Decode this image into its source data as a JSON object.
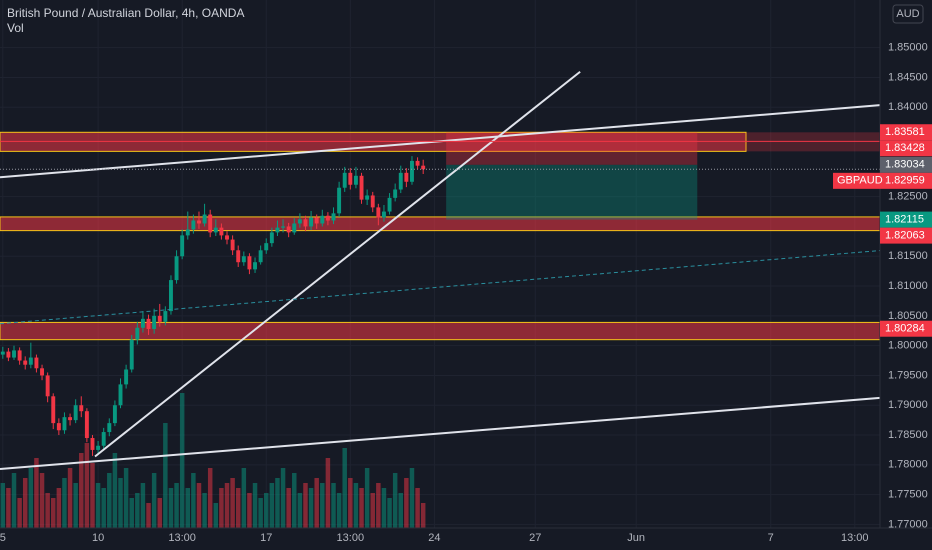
{
  "chart_data": {
    "type": "candlestick",
    "title": "British Pound / Australian Dollar, 4h, OANDA",
    "volume_label": "Vol",
    "currency": "AUD",
    "up_color": "#089981",
    "down_color": "#f23645",
    "grid": true,
    "xlim": [
      -0.5,
      156.5
    ],
    "ylim": [
      1.7694,
      1.858
    ],
    "xticks": [
      {
        "value": 0,
        "label": "5"
      },
      {
        "value": 17,
        "label": "10"
      },
      {
        "value": 32,
        "label": "13:00"
      },
      {
        "value": 47,
        "label": "17"
      },
      {
        "value": 62,
        "label": "13:00"
      },
      {
        "value": 77,
        "label": "24"
      },
      {
        "value": 95,
        "label": "27"
      },
      {
        "value": 113,
        "label": "Jun"
      },
      {
        "value": 137,
        "label": "7"
      },
      {
        "value": 152,
        "label": "13:00"
      }
    ],
    "yticks": [
      {
        "value": 1.85,
        "label": "1.85000"
      },
      {
        "value": 1.845,
        "label": "1.84500"
      },
      {
        "value": 1.84,
        "label": "1.84000"
      },
      {
        "value": 1.825,
        "label": "1.82500"
      },
      {
        "value": 1.815,
        "label": "1.81500"
      },
      {
        "value": 1.81,
        "label": "1.81000"
      },
      {
        "value": 1.805,
        "label": "1.80500"
      },
      {
        "value": 1.8,
        "label": "1.80000"
      },
      {
        "value": 1.795,
        "label": "1.79500"
      },
      {
        "value": 1.79,
        "label": "1.79000"
      },
      {
        "value": 1.785,
        "label": "1.78500"
      },
      {
        "value": 1.78,
        "label": "1.78000"
      },
      {
        "value": 1.775,
        "label": "1.77500"
      },
      {
        "value": 1.77,
        "label": "1.77000"
      }
    ],
    "open": [
      1.7985,
      1.799,
      1.798,
      1.7992,
      1.7975,
      1.7968,
      1.798,
      1.7962,
      1.795,
      1.7915,
      1.787,
      1.7858,
      1.788,
      1.7875,
      1.79,
      1.789,
      1.7845,
      1.7825,
      1.7832,
      1.7855,
      1.787,
      1.79,
      1.7935,
      1.796,
      1.801,
      1.803,
      1.8045,
      1.8028,
      1.805,
      1.804,
      1.8058,
      1.811,
      1.815,
      1.8185,
      1.8195,
      1.821,
      1.8205,
      1.822,
      1.819,
      1.8198,
      1.8185,
      1.8178,
      1.816,
      1.814,
      1.815,
      1.8128,
      1.814,
      1.816,
      1.8172,
      1.819,
      1.8198,
      1.82,
      1.819,
      1.8205,
      1.8212,
      1.82,
      1.8215,
      1.8205,
      1.8218,
      1.821,
      1.8222,
      1.8265,
      1.829,
      1.827,
      1.8285,
      1.8245,
      1.8252,
      1.8232,
      1.8215,
      1.8225,
      1.8248,
      1.8262,
      1.829,
      1.8275,
      1.831,
      1.8302
    ],
    "high": [
      1.7998,
      1.7996,
      1.8,
      1.7997,
      1.7982,
      1.8005,
      1.7985,
      1.7968,
      1.7955,
      1.792,
      1.7878,
      1.7888,
      1.7886,
      1.791,
      1.7915,
      1.7895,
      1.785,
      1.784,
      1.7862,
      1.7878,
      1.7908,
      1.7945,
      1.7968,
      1.8018,
      1.804,
      1.8058,
      1.8052,
      1.8062,
      1.807,
      1.8066,
      1.8118,
      1.816,
      1.8195,
      1.8225,
      1.822,
      1.8225,
      1.8238,
      1.8228,
      1.8212,
      1.8205,
      1.8192,
      1.8185,
      1.8168,
      1.8158,
      1.8155,
      1.8148,
      1.8168,
      1.818,
      1.8198,
      1.821,
      1.8212,
      1.8206,
      1.8214,
      1.8222,
      1.8218,
      1.8226,
      1.822,
      1.8228,
      1.8224,
      1.8232,
      1.8275,
      1.83,
      1.8298,
      1.83,
      1.829,
      1.8262,
      1.8258,
      1.8238,
      1.8236,
      1.8256,
      1.8272,
      1.8302,
      1.8298,
      1.8318,
      1.8316,
      1.8312
    ],
    "low": [
      1.7978,
      1.7974,
      1.7976,
      1.7968,
      1.796,
      1.7962,
      1.7955,
      1.7942,
      1.7905,
      1.786,
      1.785,
      1.7852,
      1.7866,
      1.787,
      1.788,
      1.7838,
      1.7815,
      1.7818,
      1.7826,
      1.7848,
      1.7865,
      1.7895,
      1.7928,
      1.7955,
      1.8002,
      1.8022,
      1.8018,
      1.802,
      1.8032,
      1.8034,
      1.8052,
      1.8104,
      1.8145,
      1.8178,
      1.8188,
      1.8196,
      1.82,
      1.8182,
      1.8184,
      1.8178,
      1.817,
      1.8152,
      1.8132,
      1.8134,
      1.812,
      1.8122,
      1.8136,
      1.8154,
      1.8166,
      1.8184,
      1.819,
      1.8182,
      1.8186,
      1.8198,
      1.8192,
      1.8194,
      1.8196,
      1.82,
      1.8202,
      1.8204,
      1.8216,
      1.8258,
      1.8262,
      1.8264,
      1.8238,
      1.8236,
      1.8224,
      1.8202,
      1.8208,
      1.822,
      1.8242,
      1.8256,
      1.8266,
      1.827,
      1.8296,
      1.8288
    ],
    "close": [
      1.799,
      1.798,
      1.7992,
      1.7975,
      1.7968,
      1.798,
      1.7962,
      1.795,
      1.7915,
      1.787,
      1.7858,
      1.788,
      1.7875,
      1.79,
      1.789,
      1.7845,
      1.7825,
      1.7832,
      1.7855,
      1.787,
      1.79,
      1.7935,
      1.796,
      1.801,
      1.803,
      1.8045,
      1.8028,
      1.805,
      1.804,
      1.8058,
      1.811,
      1.815,
      1.8185,
      1.8195,
      1.821,
      1.8205,
      1.822,
      1.819,
      1.8198,
      1.8185,
      1.8178,
      1.816,
      1.814,
      1.815,
      1.8128,
      1.814,
      1.816,
      1.8172,
      1.819,
      1.8198,
      1.82,
      1.819,
      1.8205,
      1.8212,
      1.82,
      1.8215,
      1.8205,
      1.8218,
      1.821,
      1.8222,
      1.8265,
      1.829,
      1.827,
      1.8285,
      1.8245,
      1.8252,
      1.8232,
      1.8215,
      1.8225,
      1.8248,
      1.8262,
      1.829,
      1.8275,
      1.831,
      1.8302,
      1.82959
    ],
    "volume": [
      45,
      40,
      55,
      30,
      50,
      60,
      70,
      55,
      35,
      30,
      40,
      50,
      60,
      45,
      75,
      85,
      65,
      45,
      40,
      55,
      75,
      50,
      60,
      30,
      35,
      45,
      25,
      55,
      30,
      105,
      40,
      45,
      135,
      40,
      55,
      45,
      35,
      60,
      25,
      40,
      45,
      50,
      40,
      60,
      35,
      45,
      30,
      35,
      45,
      50,
      60,
      40,
      55,
      35,
      45,
      40,
      50,
      45,
      70,
      45,
      35,
      80,
      50,
      45,
      40,
      60,
      35,
      45,
      40,
      30,
      55,
      35,
      50,
      60,
      40,
      25
    ],
    "zones": [
      {
        "high": 1.8358,
        "low": 1.8326,
        "end": 132.6
      },
      {
        "high": 1.8216,
        "low": 1.8193
      },
      {
        "high": 1.8039,
        "low": 1.801
      }
    ],
    "position": {
      "start": 79.1,
      "end": 123.9,
      "stop": 1.83581,
      "entry": 1.83034,
      "target": 1.82115
    },
    "trend_lines": [
      {
        "x": [
          -0.5,
          156.5
        ],
        "y": [
          1.82825,
          1.84035
        ],
        "color": "#e0e3eb"
      },
      {
        "x": [
          -0.5,
          156.5
        ],
        "y": [
          1.7793,
          1.79123
        ],
        "color": "#e0e3eb"
      },
      {
        "x": [
          16.45,
          103
        ],
        "y": [
          1.7814,
          1.84596
        ],
        "color": "#e0e3eb"
      },
      {
        "x": [
          -0.5,
          156.5
        ],
        "y": [
          1.80368,
          1.81596
        ],
        "color": "#2a8f9e",
        "dashed": true
      }
    ],
    "price_labels": [
      {
        "value": 1.83581,
        "color": "#f23645"
      },
      {
        "value": 1.83428,
        "color": "#f23645",
        "line": true
      },
      {
        "value": 1.83034,
        "color": "#5d606b"
      },
      {
        "value": 1.82959,
        "color": "#f23645",
        "symbol": "GBPAUD"
      },
      {
        "value": 1.82115,
        "color": "#089981"
      },
      {
        "value": 1.82063,
        "color": "#f23645"
      },
      {
        "value": 1.80284,
        "color": "#f23645"
      }
    ]
  }
}
